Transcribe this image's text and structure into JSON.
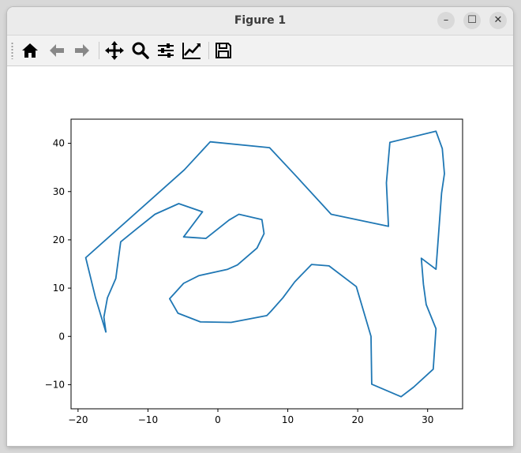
{
  "window": {
    "title": "Figure 1",
    "minimize_label": "–",
    "maximize_label": "☐",
    "close_label": "✕"
  },
  "toolbar": {
    "buttons": [
      {
        "name": "home-icon",
        "tooltip": "Home"
      },
      {
        "name": "back-arrow-icon",
        "tooltip": "Back"
      },
      {
        "name": "forward-arrow-icon",
        "tooltip": "Forward"
      },
      {
        "name": "pan-icon",
        "tooltip": "Pan"
      },
      {
        "name": "zoom-icon",
        "tooltip": "Zoom"
      },
      {
        "name": "configure-subplots-icon",
        "tooltip": "Subplots"
      },
      {
        "name": "edit-axis-icon",
        "tooltip": "Customize"
      },
      {
        "name": "save-icon",
        "tooltip": "Save"
      }
    ]
  },
  "colors": {
    "line": "#1f77b4",
    "axes": "#000000"
  },
  "chart_data": {
    "type": "line",
    "title": "",
    "xlabel": "",
    "ylabel": "",
    "xlim": [
      -21,
      35
    ],
    "ylim": [
      -15,
      45
    ],
    "xticks": [
      -20,
      -10,
      0,
      10,
      20,
      30
    ],
    "yticks": [
      -10,
      0,
      10,
      20,
      30,
      40
    ],
    "xtick_labels": [
      "−20",
      "−10",
      "0",
      "10",
      "20",
      "30"
    ],
    "ytick_labels": [
      "−10",
      "0",
      "10",
      "20",
      "30",
      "40"
    ],
    "grid": false,
    "series": [
      {
        "x": [
          -16.0,
          -16.3,
          -15.8,
          -14.6,
          -13.9,
          -11.5,
          -9.0,
          -5.6,
          -2.2,
          -4.9,
          -1.7,
          1.6,
          3.0,
          6.3,
          6.6,
          5.6,
          2.8,
          1.4,
          -2.7,
          -4.9,
          -6.9,
          -5.7,
          -2.5,
          1.9,
          7.0,
          7.6,
          9.3,
          11.0,
          13.4,
          15.9,
          19.8,
          21.9,
          22.0,
          26.2,
          28.0,
          30.8,
          31.2,
          29.8,
          29.4,
          29.1,
          31.2,
          32.0,
          32.4,
          32.1,
          31.2,
          24.6,
          24.1,
          24.4,
          16.2,
          11.2,
          7.4,
          -1.1,
          -4.8,
          -18.9,
          -17.5,
          -16.0
        ],
        "y": [
          0.8,
          4.0,
          8.0,
          12.0,
          19.6,
          22.4,
          25.3,
          27.5,
          25.8,
          20.6,
          20.3,
          24.1,
          25.3,
          24.2,
          21.3,
          18.3,
          14.8,
          13.9,
          12.6,
          11.0,
          7.8,
          4.8,
          3.0,
          2.9,
          4.3,
          5.2,
          8.0,
          11.3,
          14.9,
          14.6,
          10.3,
          0.0,
          -9.9,
          -12.5,
          -10.5,
          -6.8,
          1.6,
          6.6,
          10.8,
          16.2,
          13.9,
          29.7,
          33.7,
          38.9,
          42.5,
          40.2,
          31.8,
          22.8,
          25.3,
          33.2,
          39.1,
          40.3,
          34.5,
          16.3,
          8.0,
          0.8
        ]
      }
    ]
  }
}
